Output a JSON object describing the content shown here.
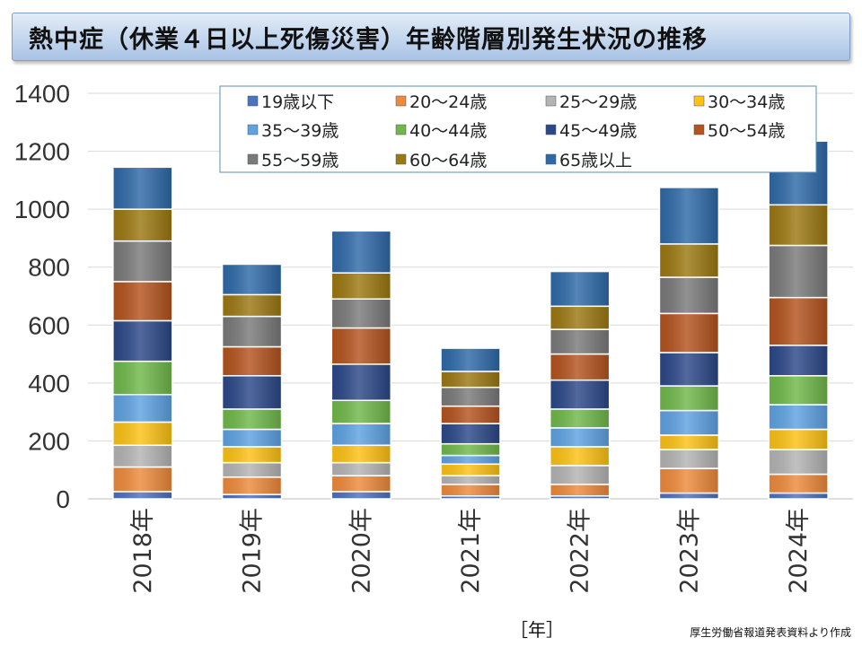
{
  "title": "熱中症（休業４日以上死傷災害）年齢階層別発生状況の推移",
  "source_note": "厚生労働省報道発表資料より作成",
  "chart_data": {
    "type": "bar",
    "stacked": true,
    "title": "熱中症（休業４日以上死傷災害）年齢階層別発生状況の推移",
    "xlabel": "［年］",
    "ylabel": "",
    "ylim": [
      0,
      1400
    ],
    "yticks": [
      0,
      200,
      400,
      600,
      800,
      1000,
      1200,
      1400
    ],
    "grid": true,
    "legend_position": "top-right",
    "categories": [
      "2018年",
      "2019年",
      "2020年",
      "2021年",
      "2022年",
      "2023年",
      "2024年"
    ],
    "series": [
      {
        "name": "19歳以下",
        "color": "#4a73c0",
        "values": [
          25,
          15,
          25,
          10,
          10,
          20,
          20
        ]
      },
      {
        "name": "20～24歳",
        "color": "#ee8a3c",
        "values": [
          85,
          60,
          55,
          40,
          40,
          85,
          65
        ]
      },
      {
        "name": "25～29歳",
        "color": "#b4b4b4",
        "values": [
          75,
          50,
          45,
          30,
          65,
          65,
          85
        ]
      },
      {
        "name": "30～34歳",
        "color": "#fcc214",
        "values": [
          80,
          55,
          60,
          40,
          65,
          50,
          70
        ]
      },
      {
        "name": "35～39歳",
        "color": "#5fa2e2",
        "values": [
          95,
          60,
          75,
          30,
          65,
          85,
          85
        ]
      },
      {
        "name": "40～44歳",
        "color": "#70b84a",
        "values": [
          115,
          70,
          80,
          40,
          65,
          85,
          100
        ]
      },
      {
        "name": "45～49歳",
        "color": "#2b4888",
        "values": [
          140,
          115,
          125,
          70,
          100,
          115,
          105
        ]
      },
      {
        "name": "50～54歳",
        "color": "#b4531e",
        "values": [
          135,
          100,
          125,
          60,
          90,
          135,
          165
        ]
      },
      {
        "name": "55～59歳",
        "color": "#7a7a7a",
        "values": [
          140,
          105,
          100,
          65,
          85,
          125,
          180
        ]
      },
      {
        "name": "60～64歳",
        "color": "#9c7812",
        "values": [
          110,
          75,
          90,
          55,
          80,
          115,
          140
        ]
      },
      {
        "name": "65歳以上",
        "color": "#2f6aa8",
        "values": [
          145,
          105,
          145,
          80,
          120,
          195,
          220
        ]
      }
    ]
  }
}
